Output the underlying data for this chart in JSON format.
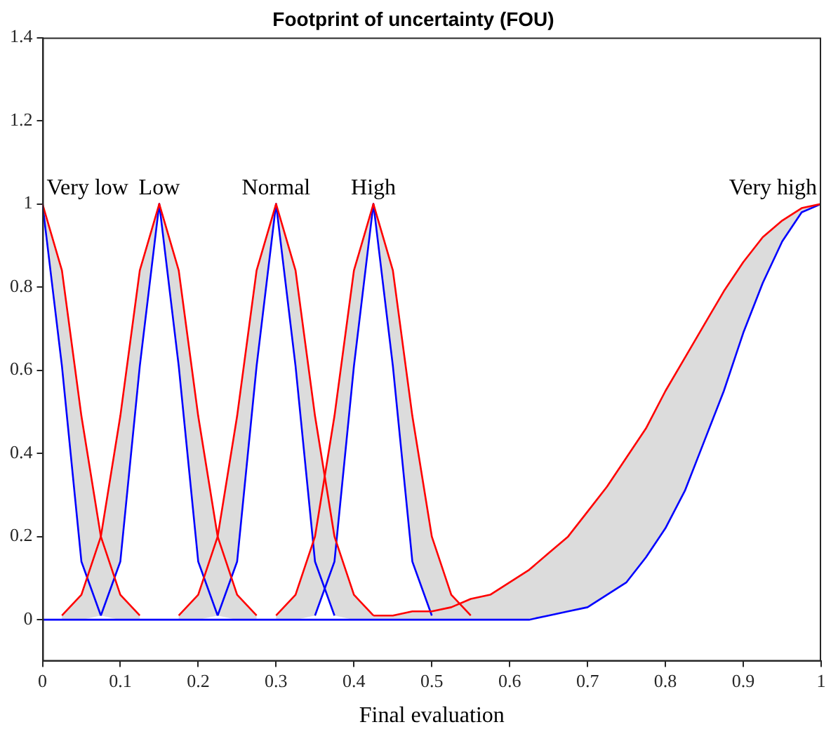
{
  "chart_data": {
    "type": "line",
    "title": "Footprint of uncertainty (FOU)",
    "xlabel": "Final evaluation",
    "x": [
      0,
      0.025,
      0.05,
      0.075,
      0.1,
      0.125,
      0.15,
      0.175,
      0.2,
      0.225,
      0.25,
      0.275,
      0.3,
      0.325,
      0.35,
      0.375,
      0.4,
      0.425,
      0.45,
      0.475,
      0.5,
      0.525,
      0.55,
      0.575,
      0.6,
      0.625,
      0.65,
      0.675,
      0.7,
      0.725,
      0.75,
      0.775,
      0.8,
      0.825,
      0.85,
      0.875,
      0.9,
      0.925,
      0.95,
      0.975,
      1
    ],
    "xlim": [
      0,
      1
    ],
    "xticks": [
      0,
      0.1,
      0.2,
      0.3,
      0.4,
      0.5,
      0.6,
      0.7,
      0.8,
      0.9,
      1
    ],
    "ylim": [
      -0.1,
      1.4
    ],
    "yticks": [
      0,
      0.2,
      0.4,
      0.6,
      0.8,
      1,
      1.2,
      1.4
    ],
    "grid": false,
    "legend": false,
    "marker": "none",
    "line_style": "solid",
    "series": [
      {
        "name": "Very low",
        "color": "#ff0000",
        "values": [
          1,
          0.84,
          0.49,
          0.2,
          0.06,
          0.01,
          null,
          null,
          null,
          null,
          null,
          null,
          null,
          null,
          null,
          null,
          null,
          null,
          null,
          null,
          null,
          null,
          null,
          null,
          null,
          null,
          null,
          null,
          null,
          null,
          null,
          null,
          null,
          null,
          null,
          null,
          null,
          null,
          null,
          null,
          null
        ],
        "upper": [
          1,
          0.84,
          0.49,
          0.2,
          0.06,
          0.01,
          null,
          null,
          null,
          null,
          null,
          null,
          null,
          null,
          null,
          null,
          null,
          null,
          null,
          null,
          null,
          null,
          null,
          null,
          null,
          null,
          null,
          null,
          null,
          null,
          null,
          null,
          null,
          null,
          null,
          null,
          null,
          null,
          null,
          null,
          null
        ],
        "lower": [
          1,
          0.61,
          0.14,
          0.01,
          0,
          0,
          null,
          null,
          null,
          null,
          null,
          null,
          null,
          null,
          null,
          null,
          null,
          null,
          null,
          null,
          null,
          null,
          null,
          null,
          null,
          null,
          null,
          null,
          null,
          null,
          null,
          null,
          null,
          null,
          null,
          null,
          null,
          null,
          null,
          null,
          null
        ]
      },
      {
        "name": "Low",
        "color": "#ff0000",
        "values": [
          null,
          0.01,
          0.06,
          0.2,
          0.49,
          0.84,
          1,
          0.84,
          0.49,
          0.2,
          0.06,
          0.01,
          null,
          null,
          null,
          null,
          null,
          null,
          null,
          null,
          null,
          null,
          null,
          null,
          null,
          null,
          null,
          null,
          null,
          null,
          null,
          null,
          null,
          null,
          null,
          null,
          null,
          null,
          null,
          null,
          null
        ],
        "upper": [
          null,
          0.01,
          0.06,
          0.2,
          0.49,
          0.84,
          1,
          0.84,
          0.49,
          0.2,
          0.06,
          0.01,
          null,
          null,
          null,
          null,
          null,
          null,
          null,
          null,
          null,
          null,
          null,
          null,
          null,
          null,
          null,
          null,
          null,
          null,
          null,
          null,
          null,
          null,
          null,
          null,
          null,
          null,
          null,
          null,
          null
        ],
        "lower": [
          null,
          0,
          0,
          0.01,
          0.14,
          0.61,
          1,
          0.61,
          0.14,
          0.01,
          0,
          0,
          null,
          null,
          null,
          null,
          null,
          null,
          null,
          null,
          null,
          null,
          null,
          null,
          null,
          null,
          null,
          null,
          null,
          null,
          null,
          null,
          null,
          null,
          null,
          null,
          null,
          null,
          null,
          null,
          null
        ]
      },
      {
        "name": "Normal",
        "color": "#ff0000",
        "values": [
          null,
          null,
          null,
          null,
          null,
          null,
          null,
          0.01,
          0.06,
          0.2,
          0.49,
          0.84,
          1,
          0.84,
          0.49,
          0.2,
          0.06,
          0.01,
          null,
          null,
          null,
          null,
          null,
          null,
          null,
          null,
          null,
          null,
          null,
          null,
          null,
          null,
          null,
          null,
          null,
          null,
          null,
          null,
          null,
          null,
          null
        ],
        "upper": [
          null,
          null,
          null,
          null,
          null,
          null,
          null,
          0.01,
          0.06,
          0.2,
          0.49,
          0.84,
          1,
          0.84,
          0.49,
          0.2,
          0.06,
          0.01,
          null,
          null,
          null,
          null,
          null,
          null,
          null,
          null,
          null,
          null,
          null,
          null,
          null,
          null,
          null,
          null,
          null,
          null,
          null,
          null,
          null,
          null,
          null
        ],
        "lower": [
          null,
          null,
          null,
          null,
          null,
          null,
          null,
          0,
          0,
          0.01,
          0.14,
          0.61,
          1,
          0.61,
          0.14,
          0.01,
          0,
          0,
          null,
          null,
          null,
          null,
          null,
          null,
          null,
          null,
          null,
          null,
          null,
          null,
          null,
          null,
          null,
          null,
          null,
          null,
          null,
          null,
          null,
          null,
          null
        ]
      },
      {
        "name": "High",
        "color": "#ff0000",
        "values": [
          null,
          null,
          null,
          null,
          null,
          null,
          null,
          null,
          null,
          null,
          null,
          null,
          0.01,
          0.06,
          0.2,
          0.49,
          0.84,
          1,
          0.84,
          0.49,
          0.2,
          0.06,
          0.01,
          null,
          null,
          null,
          null,
          null,
          null,
          null,
          null,
          null,
          null,
          null,
          null,
          null,
          null,
          null,
          null,
          null,
          null
        ],
        "upper": [
          null,
          null,
          null,
          null,
          null,
          null,
          null,
          null,
          null,
          null,
          null,
          null,
          0.01,
          0.06,
          0.2,
          0.49,
          0.84,
          1,
          0.84,
          0.49,
          0.2,
          0.06,
          0.01,
          null,
          null,
          null,
          null,
          null,
          null,
          null,
          null,
          null,
          null,
          null,
          null,
          null,
          null,
          null,
          null,
          null,
          null
        ],
        "lower": [
          null,
          null,
          null,
          null,
          null,
          null,
          null,
          null,
          null,
          null,
          null,
          null,
          0,
          0,
          0.01,
          0.14,
          0.61,
          1,
          0.61,
          0.14,
          0.01,
          0,
          0,
          null,
          null,
          null,
          null,
          null,
          null,
          null,
          null,
          null,
          null,
          null,
          null,
          null,
          null,
          null,
          null,
          null,
          null
        ]
      },
      {
        "name": "Very high",
        "color": "#ff0000",
        "values": [
          null,
          null,
          null,
          null,
          null,
          null,
          null,
          null,
          null,
          null,
          null,
          null,
          null,
          null,
          null,
          null,
          null,
          0.01,
          0.01,
          0.02,
          0.02,
          0.03,
          0.05,
          0.06,
          0.09,
          0.12,
          0.16,
          0.2,
          0.26,
          0.32,
          0.39,
          0.46,
          0.55,
          0.63,
          0.71,
          0.79,
          0.86,
          0.92,
          0.96,
          0.99,
          1
        ],
        "upper": [
          null,
          null,
          null,
          null,
          null,
          null,
          null,
          null,
          null,
          null,
          null,
          null,
          null,
          null,
          null,
          null,
          null,
          0.01,
          0.01,
          0.02,
          0.02,
          0.03,
          0.05,
          0.06,
          0.09,
          0.12,
          0.16,
          0.2,
          0.26,
          0.32,
          0.39,
          0.46,
          0.55,
          0.63,
          0.71,
          0.79,
          0.86,
          0.92,
          0.96,
          0.99,
          1
        ],
        "lower": [
          null,
          null,
          null,
          null,
          null,
          null,
          null,
          null,
          null,
          null,
          null,
          null,
          null,
          null,
          null,
          null,
          null,
          0,
          0,
          0,
          0,
          0,
          0,
          0,
          0,
          0,
          0.01,
          0.02,
          0.03,
          0.06,
          0.09,
          0.15,
          0.22,
          0.31,
          0.43,
          0.55,
          0.69,
          0.81,
          0.91,
          0.98,
          1
        ]
      },
      {
        "color": "#0000ff",
        "values": [
          1,
          0.61,
          0.14,
          0.01,
          null,
          null,
          null,
          null,
          null,
          null,
          null,
          null,
          null,
          null,
          null,
          null,
          null,
          null,
          null,
          null,
          null,
          null,
          null,
          null,
          null,
          null,
          null,
          null,
          null,
          null,
          null,
          null,
          null,
          null,
          null,
          null,
          null,
          null,
          null,
          null,
          null
        ]
      },
      {
        "color": "#0000ff",
        "values": [
          null,
          null,
          null,
          0.01,
          0.14,
          0.61,
          1,
          0.61,
          0.14,
          0.01,
          null,
          null,
          null,
          null,
          null,
          null,
          null,
          null,
          null,
          null,
          null,
          null,
          null,
          null,
          null,
          null,
          null,
          null,
          null,
          null,
          null,
          null,
          null,
          null,
          null,
          null,
          null,
          null,
          null,
          null,
          null
        ]
      },
      {
        "color": "#0000ff",
        "values": [
          null,
          null,
          null,
          null,
          null,
          null,
          null,
          null,
          null,
          0.01,
          0.14,
          0.61,
          1,
          0.61,
          0.14,
          0.01,
          null,
          null,
          null,
          null,
          null,
          null,
          null,
          null,
          null,
          null,
          null,
          null,
          null,
          null,
          null,
          null,
          null,
          null,
          null,
          null,
          null,
          null,
          null,
          null,
          null
        ]
      },
      {
        "color": "#0000ff",
        "values": [
          null,
          null,
          null,
          null,
          null,
          null,
          null,
          null,
          null,
          null,
          null,
          null,
          null,
          null,
          0.01,
          0.14,
          0.61,
          1,
          0.61,
          0.14,
          0.01,
          null,
          null,
          null,
          null,
          null,
          null,
          null,
          null,
          null,
          null,
          null,
          null,
          null,
          null,
          null,
          null,
          null,
          null,
          null,
          null
        ]
      },
      {
        "color": "#0000ff",
        "values": [
          0,
          0,
          0,
          0,
          0,
          0,
          0,
          0,
          0,
          0,
          0,
          0,
          0,
          0,
          0,
          0,
          0,
          0,
          0,
          0,
          0,
          0,
          0,
          0,
          0,
          0,
          0.01,
          0.02,
          0.03,
          0.06,
          0.09,
          0.15,
          0.22,
          0.31,
          0.43,
          0.55,
          0.69,
          0.81,
          0.91,
          0.98,
          1
        ]
      }
    ]
  }
}
